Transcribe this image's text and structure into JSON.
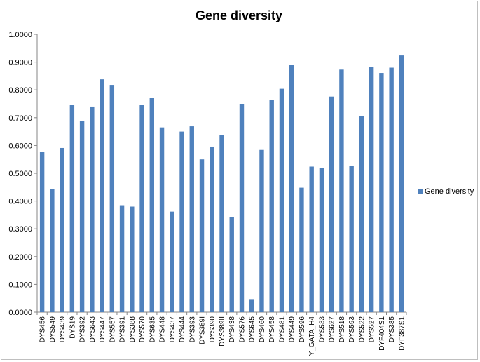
{
  "chart_data": {
    "type": "bar",
    "title": "Gene diversity",
    "categories": [
      "DYS456",
      "DYS549",
      "DYS439",
      "DYS19",
      "DYS392",
      "DYS643",
      "DYS447",
      "DYS557",
      "DYS391",
      "DYS388",
      "DYS570",
      "DYS635",
      "DYS448",
      "DYS437",
      "DYS444",
      "DYS393",
      "DYS389I",
      "DYS390",
      "DYS389II",
      "DYS438",
      "DYS576",
      "DYS645",
      "DYS460",
      "DYS458",
      "DYS481",
      "DYS449",
      "DYS596",
      "Y_GATA_H4",
      "DYS533",
      "DYS627",
      "DYS518",
      "DYS593",
      "DYS522",
      "DYS527",
      "DYF404S1",
      "DYS385",
      "DYF387S1"
    ],
    "series": [
      {
        "name": "Gene diversity",
        "values": [
          0.577,
          0.443,
          0.591,
          0.746,
          0.688,
          0.74,
          0.838,
          0.818,
          0.385,
          0.38,
          0.747,
          0.772,
          0.665,
          0.362,
          0.65,
          0.669,
          0.55,
          0.596,
          0.637,
          0.343,
          0.75,
          0.047,
          0.584,
          0.764,
          0.804,
          0.89,
          0.448,
          0.524,
          0.519,
          0.776,
          0.873,
          0.526,
          0.706,
          0.882,
          0.861,
          0.88,
          0.924
        ],
        "color": "#4f81bd"
      }
    ],
    "y_ticks": [
      "0.0000",
      "0.1000",
      "0.2000",
      "0.3000",
      "0.4000",
      "0.5000",
      "0.6000",
      "0.7000",
      "0.8000",
      "0.9000",
      "1.0000"
    ],
    "ylim": [
      0,
      1.0
    ],
    "xlabel": "",
    "ylabel": "",
    "grid": false,
    "legend_position": "right"
  }
}
